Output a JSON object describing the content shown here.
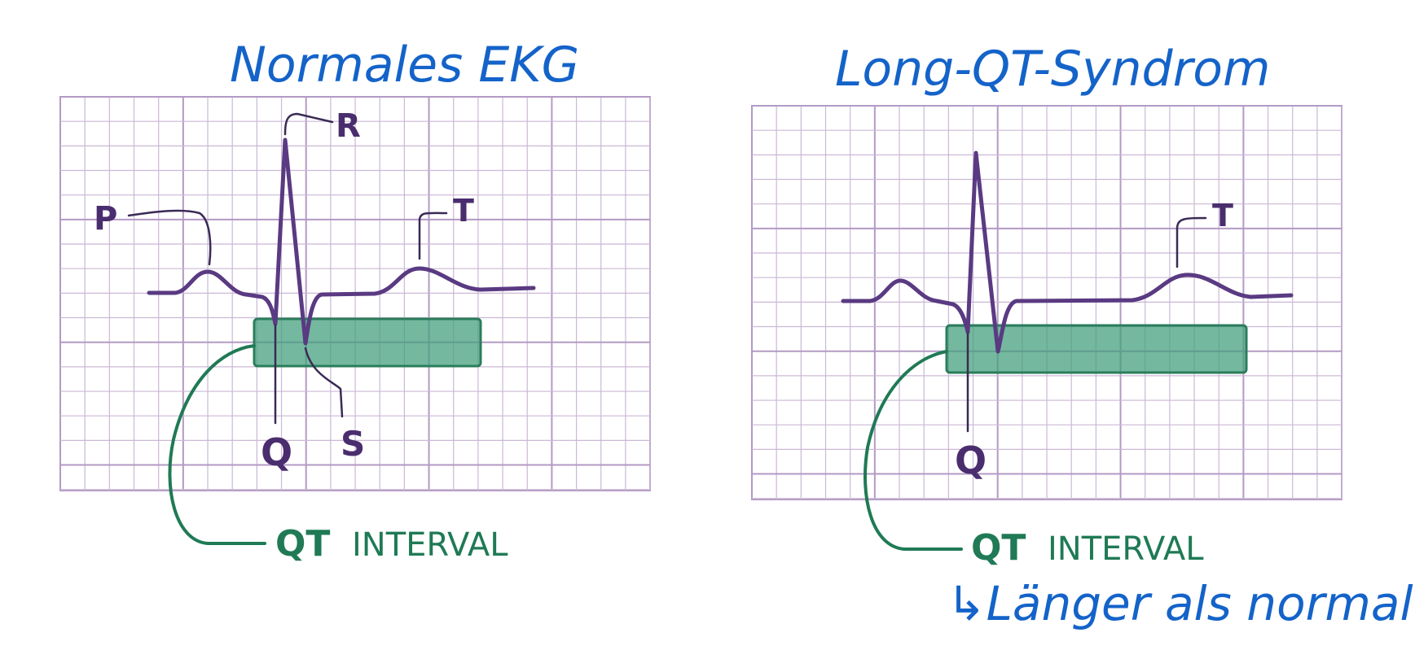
{
  "left_panel": {
    "title": "Normales EKG",
    "labels": {
      "p": "P",
      "r": "R",
      "t": "T",
      "q": "Q",
      "s": "S"
    },
    "qt_label_bold": "QT",
    "qt_label_rest": "INTERVAL"
  },
  "right_panel": {
    "title": "Long-QT-Syndrom",
    "labels": {
      "t": "T",
      "q": "Q"
    },
    "qt_label_bold": "QT",
    "qt_label_rest": "INTERVAL",
    "note": "↳Länger als normal"
  },
  "colors": {
    "handwriting": "#1463c9",
    "ekg_trace": "#5a3a82",
    "qt_highlight": "#3f9e7a",
    "grid": "#cbb8d6"
  }
}
